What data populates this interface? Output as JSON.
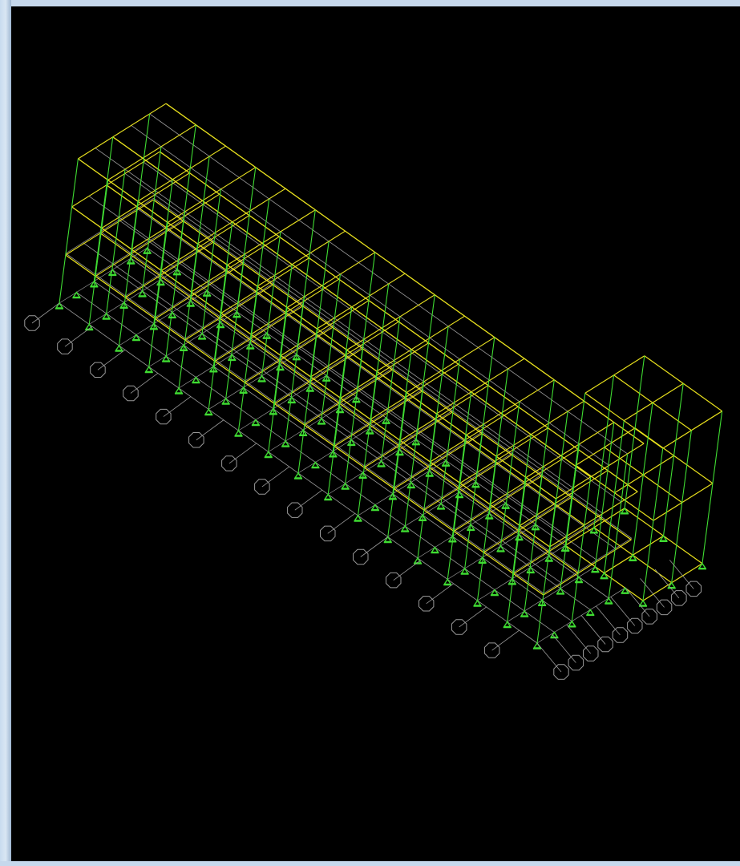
{
  "viewport": {
    "background": "#000000",
    "colors": {
      "beam": "#e8e01c",
      "column": "#3fdc32",
      "frame": "#9a9a9a",
      "support": "#3fdc32",
      "grid_bubble": "#9a9a9a"
    }
  },
  "grid_bubbles_left_row": [
    "",
    "",
    "",
    "",
    "",
    "",
    "",
    "",
    "",
    "",
    "",
    "",
    "",
    "",
    ""
  ],
  "grid_bubbles_right_row": [
    "",
    "",
    "",
    "",
    "",
    "",
    "",
    "",
    "",
    ""
  ]
}
